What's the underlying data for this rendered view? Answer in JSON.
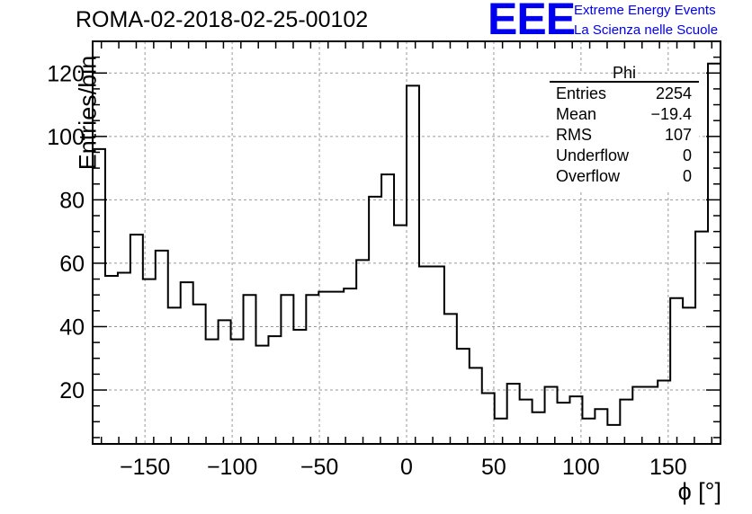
{
  "header": {
    "title": "ROMA-02-2018-02-25-00102",
    "logo_text": "EEE",
    "logo_line1": "Extreme Energy Events",
    "logo_line2": "La Scienza nelle Scuole",
    "logo_color": "#0000ee"
  },
  "stats_box": {
    "name": "Phi",
    "rows": [
      {
        "label": "Entries",
        "value": "2254"
      },
      {
        "label": "Mean",
        "value": "−19.4"
      },
      {
        "label": "RMS",
        "value": "107"
      },
      {
        "label": "Underflow",
        "value": "0"
      },
      {
        "label": "Overflow",
        "value": "0"
      }
    ]
  },
  "chart_data": {
    "type": "histogram",
    "xlabel": "ϕ [°]",
    "ylabel": "Entries/bin",
    "xlim": [
      -180,
      180
    ],
    "ylim": [
      3,
      130
    ],
    "bin_width": 7.2,
    "bin_edges_start": -180,
    "values": [
      96,
      56,
      57,
      69,
      55,
      64,
      46,
      54,
      47,
      36,
      42,
      36,
      50,
      34,
      37,
      50,
      39,
      50,
      51,
      51,
      52,
      61,
      81,
      88,
      72,
      116,
      59,
      59,
      44,
      33,
      27,
      19,
      11,
      22,
      17,
      13,
      21,
      16,
      18,
      11,
      14,
      9,
      17,
      21,
      21,
      23,
      49,
      46,
      70,
      123
    ],
    "x_ticks": [
      -150,
      -100,
      -50,
      0,
      50,
      100,
      150
    ],
    "x_tick_labels": [
      "−150",
      "−100",
      "−50",
      "0",
      "50",
      "100",
      "150"
    ],
    "y_ticks": [
      20,
      40,
      60,
      80,
      100,
      120
    ],
    "y_tick_labels": [
      "20",
      "40",
      "60",
      "80",
      "100",
      "120"
    ],
    "grid": true,
    "line_color": "#000000"
  }
}
